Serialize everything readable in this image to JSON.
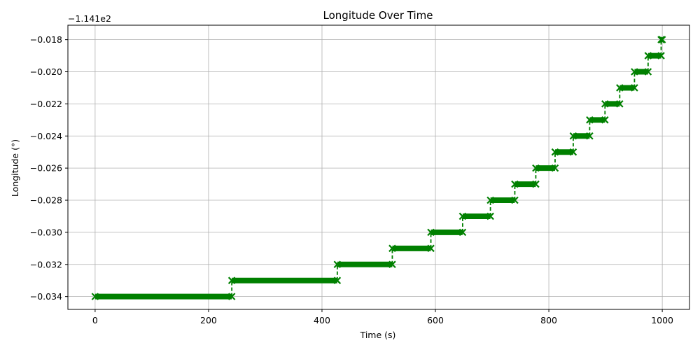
{
  "chart_data": {
    "type": "line",
    "title": "Longitude Over Time",
    "xlabel": "Time (s)",
    "ylabel": "Longitude (°)",
    "offset_label": "−1.141e2",
    "xlim": [
      -48,
      1048
    ],
    "ylim": [
      -0.0348,
      -0.0171
    ],
    "x_ticks": [
      0,
      200,
      400,
      600,
      800,
      1000
    ],
    "x_tick_labels": [
      "0",
      "200",
      "400",
      "600",
      "800",
      "1000"
    ],
    "y_ticks": [
      -0.034,
      -0.032,
      -0.03,
      -0.028,
      -0.026,
      -0.024,
      -0.022,
      -0.02,
      -0.018
    ],
    "y_tick_labels": [
      "−0.034",
      "−0.032",
      "−0.030",
      "−0.028",
      "−0.026",
      "−0.024",
      "−0.022",
      "−0.020",
      "−0.018"
    ],
    "grid": true,
    "series_color": "#008000",
    "marker": "x",
    "line_style": "dashed",
    "steps": [
      {
        "y": -0.034,
        "x_start": 0,
        "x_end": 241
      },
      {
        "y": -0.033,
        "x_start": 241,
        "x_end": 427
      },
      {
        "y": -0.032,
        "x_start": 427,
        "x_end": 524
      },
      {
        "y": -0.031,
        "x_start": 524,
        "x_end": 592
      },
      {
        "y": -0.03,
        "x_start": 592,
        "x_end": 648
      },
      {
        "y": -0.029,
        "x_start": 648,
        "x_end": 697
      },
      {
        "y": -0.028,
        "x_start": 697,
        "x_end": 740
      },
      {
        "y": -0.027,
        "x_start": 740,
        "x_end": 777
      },
      {
        "y": -0.026,
        "x_start": 777,
        "x_end": 811
      },
      {
        "y": -0.025,
        "x_start": 811,
        "x_end": 843
      },
      {
        "y": -0.024,
        "x_start": 843,
        "x_end": 872
      },
      {
        "y": -0.023,
        "x_start": 872,
        "x_end": 899
      },
      {
        "y": -0.022,
        "x_start": 899,
        "x_end": 925
      },
      {
        "y": -0.021,
        "x_start": 925,
        "x_end": 951
      },
      {
        "y": -0.02,
        "x_start": 951,
        "x_end": 975
      },
      {
        "y": -0.019,
        "x_start": 975,
        "x_end": 998
      },
      {
        "y": -0.018,
        "x_start": 998,
        "x_end": 1000
      }
    ]
  }
}
